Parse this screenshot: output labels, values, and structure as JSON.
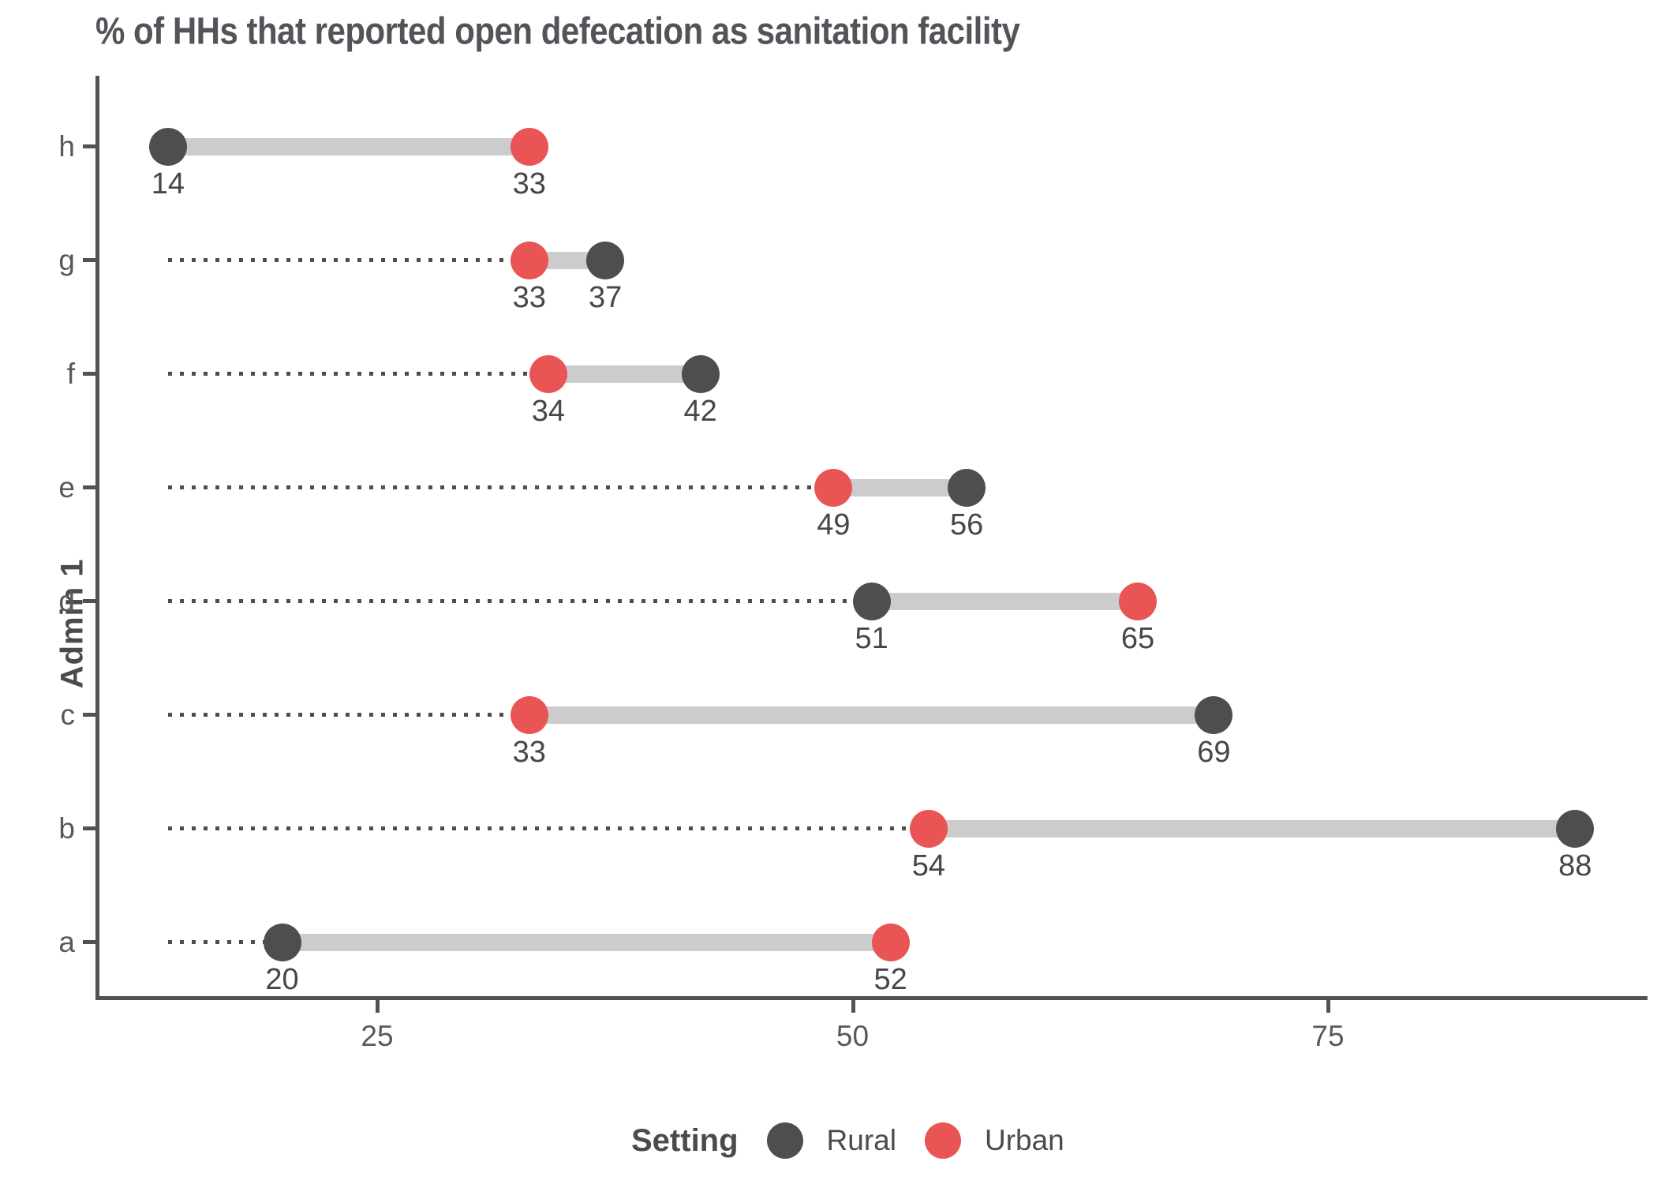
{
  "title": "% of HHs that reported open defecation as sanitation facility",
  "y_axis": {
    "label": "Admin 1"
  },
  "x_axis": {
    "tick_labels": [
      "25",
      "50",
      "75"
    ]
  },
  "legend": {
    "title": "Setting",
    "items": [
      {
        "label": "Rural",
        "color": "#4D4E50"
      },
      {
        "label": "Urban",
        "color": "#E95454"
      }
    ]
  },
  "colors": {
    "rural": "#4D4E50",
    "urban": "#E95454",
    "connector": "#CCCCCC",
    "leader_line": "#4D4D4D",
    "axis": "#515256",
    "title_text": "#525459",
    "value_text": "#46474A"
  },
  "chart_data": {
    "type": "dumbbell",
    "orientation": "horizontal",
    "title": "% of HHs that reported open defecation as sanitation facility",
    "ylabel": "Admin 1",
    "xlabel": "",
    "categories": [
      "h",
      "g",
      "f",
      "e",
      "d",
      "c",
      "b",
      "a"
    ],
    "series": [
      {
        "name": "Rural",
        "color": "#4D4E50",
        "values": [
          14,
          37,
          42,
          56,
          51,
          69,
          88,
          20
        ]
      },
      {
        "name": "Urban",
        "color": "#E95454",
        "values": [
          33,
          33,
          34,
          49,
          65,
          33,
          54,
          52
        ]
      }
    ],
    "x_ticks": [
      25,
      50,
      75
    ],
    "xlim": [
      14,
      92
    ],
    "leader_line_origin": 14,
    "value_labels": true,
    "grid": false,
    "legend_position": "bottom"
  }
}
